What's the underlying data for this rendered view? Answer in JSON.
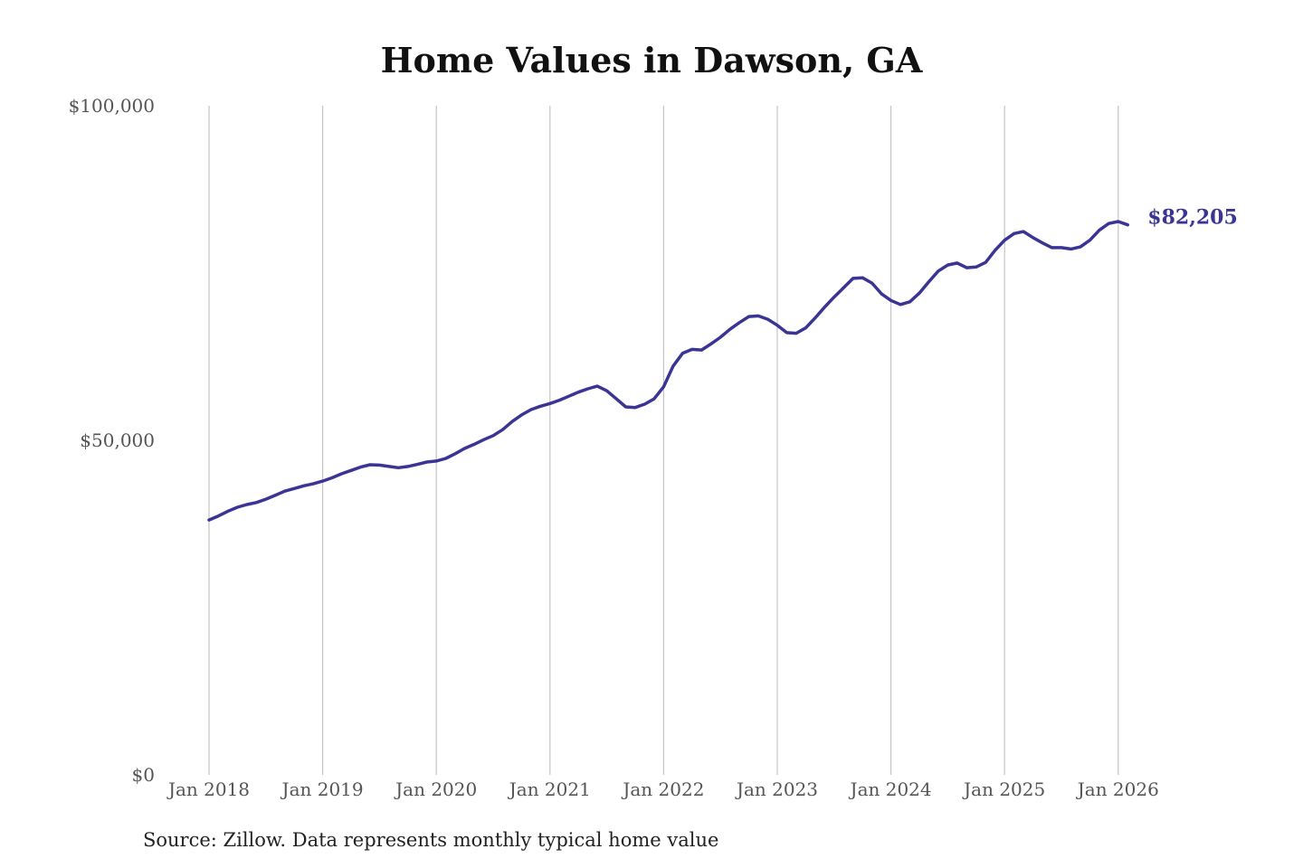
{
  "chart_data": {
    "type": "line",
    "title": "Home Values in Dawson, GA",
    "xlabel": "",
    "ylabel": "",
    "ylim": [
      0,
      100000
    ],
    "y_ticks": [
      0,
      50000,
      100000
    ],
    "y_tick_labels": [
      "$0",
      "$50,000",
      "$100,000"
    ],
    "x_ticks": [
      "2018-01",
      "2019-01",
      "2020-01",
      "2021-01",
      "2022-01",
      "2023-01",
      "2024-01",
      "2025-01",
      "2026-01"
    ],
    "x_tick_labels": [
      "Jan 2018",
      "Jan 2019",
      "Jan 2020",
      "Jan 2021",
      "Jan 2022",
      "Jan 2023",
      "Jan 2024",
      "Jan 2025",
      "Jan 2026"
    ],
    "grid": "vertical",
    "color": "#3a3594",
    "end_label": "$82,205",
    "start": "2018-01",
    "values": [
      38100,
      38700,
      39400,
      40000,
      40400,
      40700,
      41200,
      41800,
      42400,
      42800,
      43200,
      43500,
      43900,
      44400,
      45000,
      45500,
      46000,
      46350,
      46300,
      46100,
      45900,
      46100,
      46400,
      46750,
      46900,
      47300,
      48000,
      48800,
      49400,
      50100,
      50700,
      51600,
      52800,
      53800,
      54600,
      55100,
      55500,
      56000,
      56600,
      57200,
      57700,
      58100,
      57400,
      56200,
      55000,
      54900,
      55400,
      56200,
      58000,
      61100,
      63000,
      63600,
      63500,
      64400,
      65400,
      66600,
      67600,
      68500,
      68600,
      68100,
      67200,
      66100,
      66000,
      66800,
      68300,
      69900,
      71400,
      72800,
      74200,
      74300,
      73500,
      71900,
      70900,
      70300,
      70700,
      72000,
      73700,
      75300,
      76200,
      76500,
      75800,
      75900,
      76600,
      78400,
      79900,
      80900,
      81200,
      80300,
      79500,
      78800,
      78800,
      78600,
      78900,
      79900,
      81400,
      82400,
      82700,
      82205
    ]
  },
  "source": "Source: Zillow. Data represents monthly typical home value"
}
